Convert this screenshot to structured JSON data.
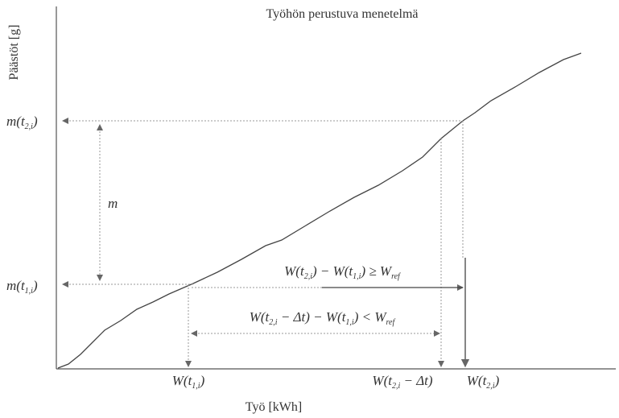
{
  "title": "Työhön perustuva menetelmä",
  "y_axis_label": "Päästöt [g]",
  "x_axis_label": "Työ [kWh]",
  "labels": {
    "m_t2": [
      "m(t",
      "2,i",
      ")"
    ],
    "m_t1": [
      "m(t",
      "1,i",
      ")"
    ],
    "m": [
      "m"
    ],
    "work_ge": [
      "W(t",
      "2,i",
      ") − W(t",
      "1,i",
      ") ≥ W",
      "ref"
    ],
    "work_lt": [
      "W(t",
      "2,i",
      " − Δt) − W(t",
      "1,i",
      ") < W",
      "ref"
    ],
    "w_t1": [
      "W(t",
      "1,i",
      ")"
    ],
    "w_t2_dt": [
      "W(t",
      "2,i",
      " − Δt)"
    ],
    "w_t2": [
      "W(t",
      "2,i",
      ")"
    ]
  }
}
